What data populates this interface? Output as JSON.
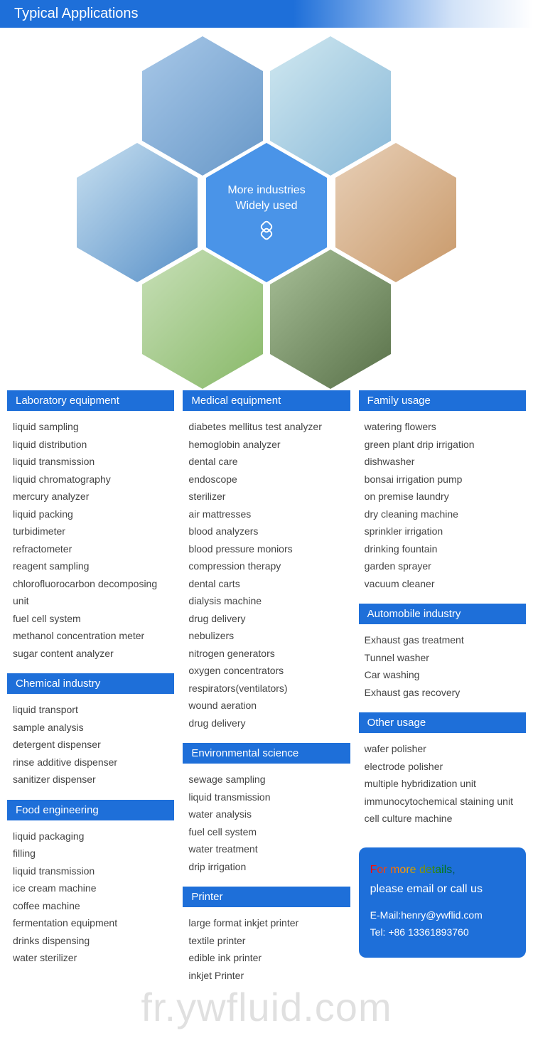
{
  "header": {
    "title": "Typical Applications"
  },
  "hexCenter": {
    "line1": "More industries",
    "line2": "Widely used"
  },
  "columns": [
    {
      "sections": [
        {
          "title": "Laboratory equipment",
          "items": [
            "liquid sampling",
            "liquid distribution",
            "liquid transmission",
            "liquid chromatography",
            "mercury analyzer",
            "liquid packing",
            "turbidimeter",
            "refractometer",
            "reagent sampling",
            "chlorofluorocarbon decomposing unit",
            "fuel cell system",
            "methanol concentration meter",
            "sugar content analyzer"
          ]
        },
        {
          "title": "Chemical industry",
          "items": [
            "liquid transport",
            "sample analysis",
            "detergent dispenser",
            "rinse additive dispenser",
            "sanitizer dispenser"
          ]
        },
        {
          "title": "Food engineering",
          "items": [
            "liquid packaging",
            "filling",
            "liquid transmission",
            "ice cream machine",
            "coffee machine",
            "fermentation equipment",
            "drinks dispensing",
            "water sterilizer"
          ]
        }
      ]
    },
    {
      "sections": [
        {
          "title": "Medical equipment",
          "items": [
            "diabetes mellitus test analyzer",
            "hemoglobin analyzer",
            "dental care",
            "endoscope",
            "sterilizer",
            "air mattresses",
            "blood analyzers",
            "blood pressure moniors",
            "compression therapy",
            "dental carts",
            "dialysis machine",
            "drug delivery",
            "nebulizers",
            "nitrogen generators",
            "oxygen concentrators",
            "respirators(ventilators)",
            "wound aeration",
            "drug delivery"
          ]
        },
        {
          "title": "Environmental science",
          "items": [
            "sewage sampling",
            "liquid transmission",
            "water analysis",
            "fuel cell system",
            "water treatment",
            "drip irrigation"
          ]
        },
        {
          "title": "Printer",
          "items": [
            "large format inkjet printer",
            "textile printer",
            "edible ink printer",
            "inkjet Printer"
          ]
        }
      ]
    },
    {
      "sections": [
        {
          "title": "Family usage",
          "items": [
            "watering flowers",
            "green plant drip irrigation",
            "dishwasher",
            "bonsai irrigation pump",
            "on premise laundry",
            "dry cleaning machine",
            "sprinkler irrigation",
            "drinking fountain",
            "garden sprayer",
            "vacuum cleaner"
          ]
        },
        {
          "title": "Automobile industry",
          "items": [
            "Exhaust gas treatment",
            "Tunnel washer",
            "Car washing",
            "Exhaust gas recovery"
          ]
        },
        {
          "title": "Other usage",
          "items": [
            "wafer polisher",
            "electrode polisher",
            "multiple hybridization unit",
            "immunocytochemical staining unit",
            "cell culture machine"
          ]
        }
      ]
    }
  ],
  "contact": {
    "cta1": "For more details,",
    "cta2": "please email or call us",
    "email": "E-Mail:henry@ywflid.com",
    "tel": "Tel: +86 13361893760"
  },
  "watermark": "fr.ywfluid.com",
  "colors": {
    "primary": "#1e6fd9",
    "text": "#444"
  }
}
